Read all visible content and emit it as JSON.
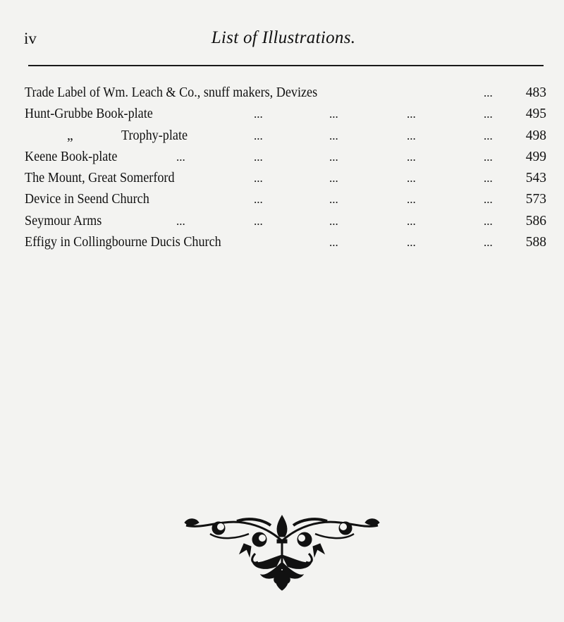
{
  "header": {
    "folio": "iv",
    "title": "List of Illustrations."
  },
  "leader": "...",
  "entries": [
    {
      "label": "Trade Label of Wm. Leach & Co., snuff makers, Devizes",
      "leaders": 1,
      "page": "483"
    },
    {
      "label": "Hunt-Grubbe Book-plate",
      "leaders": 4,
      "page": "495"
    },
    {
      "ditto": "„",
      "label": "Trophy-plate",
      "leaders": 4,
      "page": "498"
    },
    {
      "label": "Keene Book-plate",
      "leaders": 5,
      "page": "499"
    },
    {
      "label": "The Mount, Great Somerford",
      "leaders": 4,
      "page": "543"
    },
    {
      "label": "Device in Seend Church",
      "leaders": 4,
      "page": "573"
    },
    {
      "label": "Seymour Arms",
      "leaders": 5,
      "page": "586"
    },
    {
      "label": "Effigy in Collingbourne Ducis Church",
      "leaders": 3,
      "page": "588"
    }
  ],
  "ornament": {
    "icon": "floral-tailpiece-ornament",
    "color": "#111111"
  }
}
